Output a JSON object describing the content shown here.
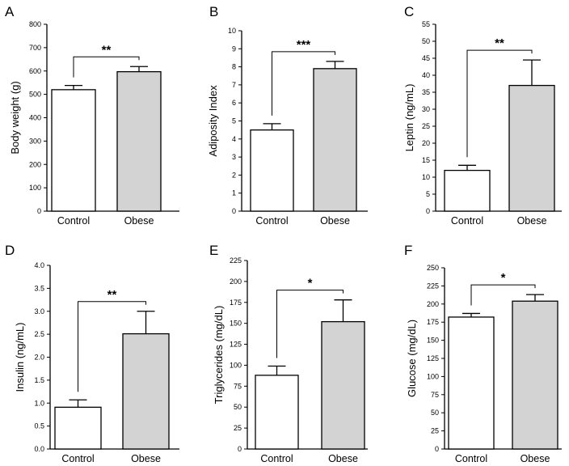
{
  "colors": {
    "control_fill": "#ffffff",
    "obese_fill": "#d3d3d3",
    "stroke": "#000000"
  },
  "chart_data": [
    {
      "panel": "A",
      "type": "bar",
      "categories": [
        "Control",
        "Obese"
      ],
      "values": [
        520,
        597
      ],
      "errors": [
        18,
        22
      ],
      "ylabel": "Body weight (g)",
      "ylim": [
        0,
        800
      ],
      "yticks": [
        0,
        100,
        200,
        300,
        400,
        500,
        600,
        700,
        800
      ],
      "significance": "**"
    },
    {
      "panel": "B",
      "type": "bar",
      "categories": [
        "Control",
        "Obese"
      ],
      "values": [
        4.5,
        7.9
      ],
      "errors": [
        0.35,
        0.4
      ],
      "ylabel": "Adiposity Index",
      "ylim": [
        0,
        10
      ],
      "yticks": [
        0,
        1,
        2,
        3,
        4,
        5,
        6,
        7,
        8,
        9,
        10
      ],
      "significance": "***"
    },
    {
      "panel": "C",
      "type": "bar",
      "categories": [
        "Control",
        "Obese"
      ],
      "values": [
        12,
        37
      ],
      "errors": [
        1.5,
        7.5
      ],
      "ylabel": "Leptin (ng/mL)",
      "ylim": [
        0,
        55
      ],
      "yticks": [
        0,
        5,
        10,
        15,
        20,
        25,
        30,
        35,
        40,
        45,
        50,
        55
      ],
      "significance": "**"
    },
    {
      "panel": "D",
      "type": "bar",
      "categories": [
        "Control",
        "Obese"
      ],
      "values": [
        0.91,
        2.51
      ],
      "errors": [
        0.16,
        0.49
      ],
      "ylabel": "Insulin (ng/mL)",
      "ylim": [
        0,
        4.0
      ],
      "yticks": [
        0.0,
        0.5,
        1.0,
        1.5,
        2.0,
        2.5,
        3.0,
        3.5,
        4.0
      ],
      "tick_decimals": 1,
      "significance": "**"
    },
    {
      "panel": "E",
      "type": "bar",
      "categories": [
        "Control",
        "Obese"
      ],
      "values": [
        88,
        152
      ],
      "errors": [
        11,
        26
      ],
      "ylabel": "Triglycerides (mg/dL)",
      "ylim": [
        0,
        225
      ],
      "yticks": [
        0,
        25,
        50,
        75,
        100,
        125,
        150,
        175,
        200,
        225
      ],
      "significance": "*"
    },
    {
      "panel": "F",
      "type": "bar",
      "categories": [
        "Control",
        "Obese"
      ],
      "values": [
        182,
        204
      ],
      "errors": [
        5,
        9
      ],
      "ylabel": "Glucose (mg/dL)",
      "ylim": [
        0,
        250
      ],
      "yticks": [
        0,
        25,
        50,
        75,
        100,
        125,
        150,
        175,
        200,
        225,
        250
      ],
      "significance": "*"
    }
  ]
}
